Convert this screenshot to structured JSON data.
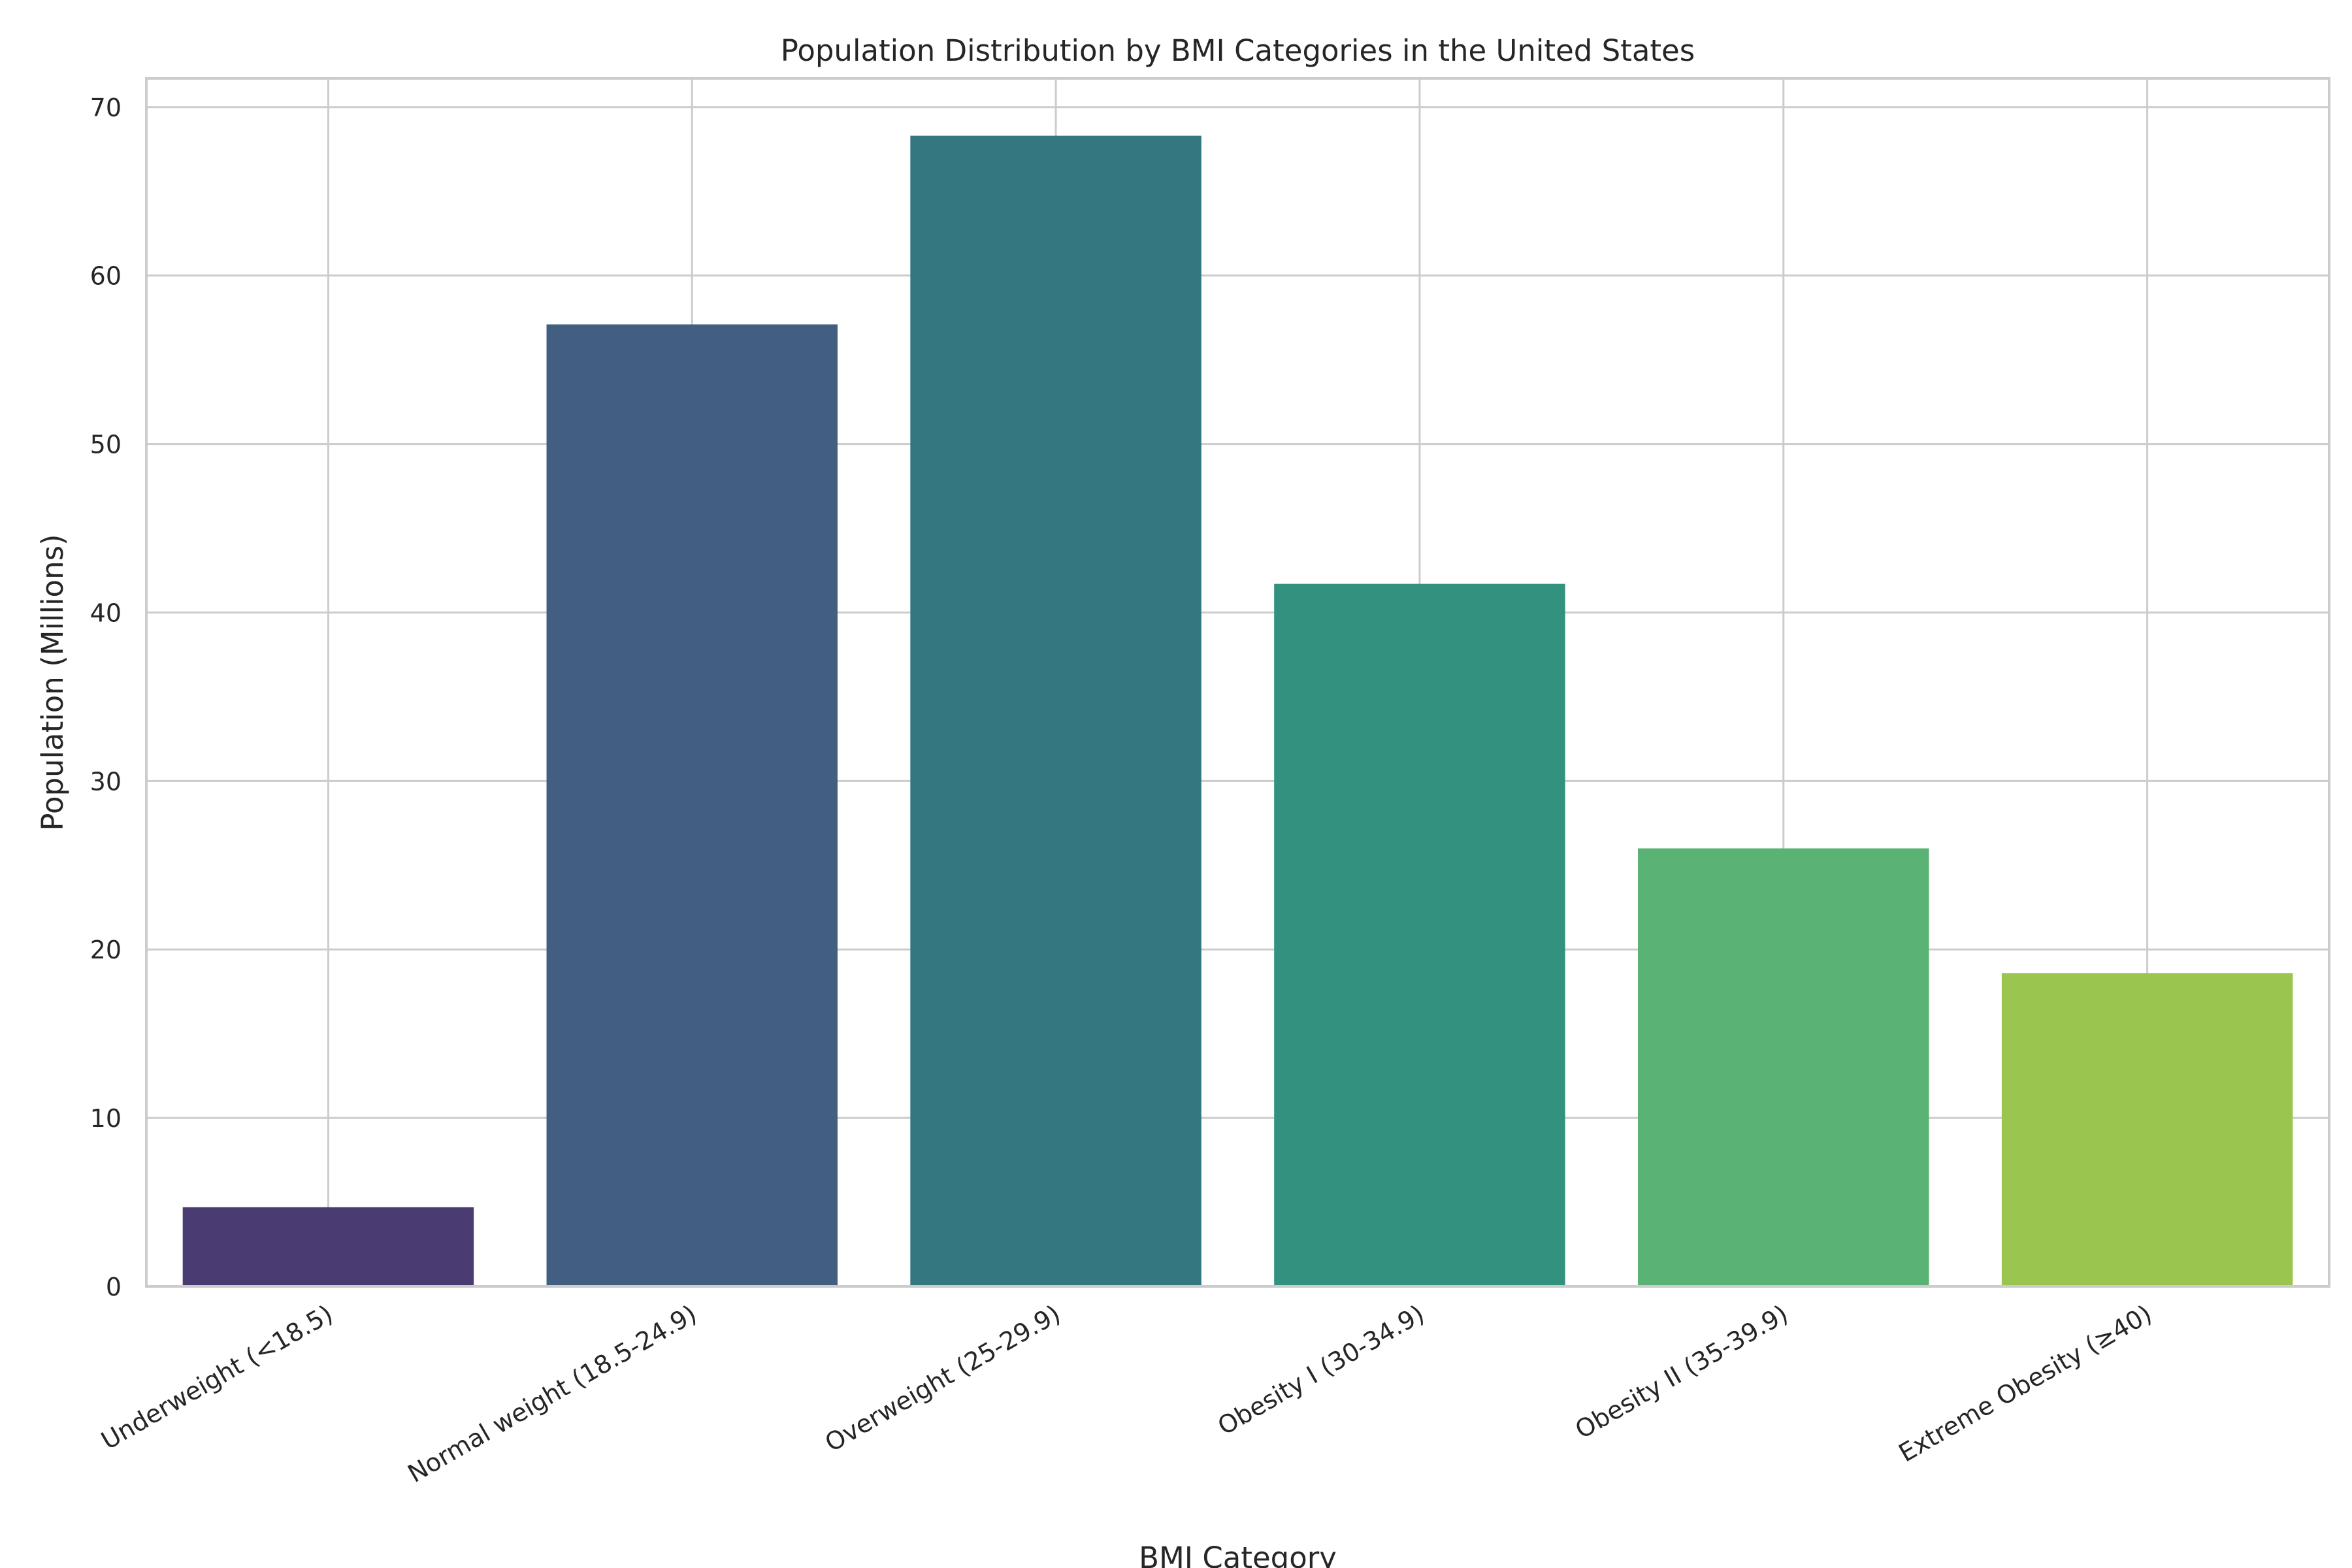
{
  "chart_data": {
    "type": "bar",
    "title": "Population Distribution by BMI Categories in the United States",
    "xlabel": "BMI Category",
    "ylabel": "Population (Millions)",
    "categories": [
      "Underweight (<18.5)",
      "Normal weight (18.5-24.9)",
      "Overweight (25-29.9)",
      "Obesity I (30-34.9)",
      "Obesity II (35-39.9)",
      "Extreme Obesity (≥40)"
    ],
    "values": [
      4.7,
      57.1,
      68.3,
      41.7,
      26.0,
      18.6
    ],
    "colors": [
      "#4a3b73",
      "#425e81",
      "#357780",
      "#32927f",
      "#5ab274",
      "#9ac54e"
    ],
    "ylim": [
      0,
      71.7
    ],
    "yticks": [
      0,
      10,
      20,
      30,
      40,
      50,
      60,
      70
    ],
    "grid": true,
    "legend": "none"
  }
}
